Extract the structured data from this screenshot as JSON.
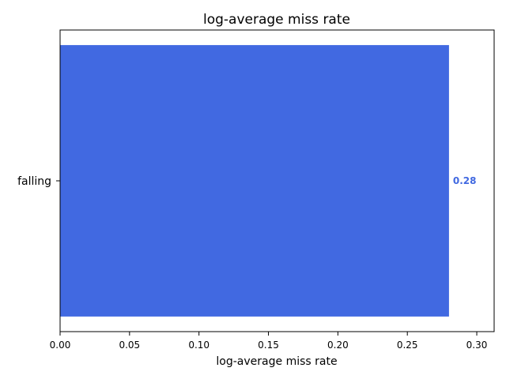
{
  "chart_data": {
    "type": "bar",
    "orientation": "horizontal",
    "title": "log-average miss rate",
    "xlabel": "log-average miss rate",
    "ylabel": "",
    "categories": [
      "falling"
    ],
    "values": [
      0.28
    ],
    "data_labels": [
      "0.28"
    ],
    "xlim": [
      0.0,
      0.3125
    ],
    "xticks": [
      0.0,
      0.05,
      0.1,
      0.15,
      0.2,
      0.25,
      0.3
    ],
    "xtick_labels": [
      "0.00",
      "0.05",
      "0.10",
      "0.15",
      "0.20",
      "0.25",
      "0.30"
    ],
    "bar_color": "#4169e1",
    "grid": false
  }
}
